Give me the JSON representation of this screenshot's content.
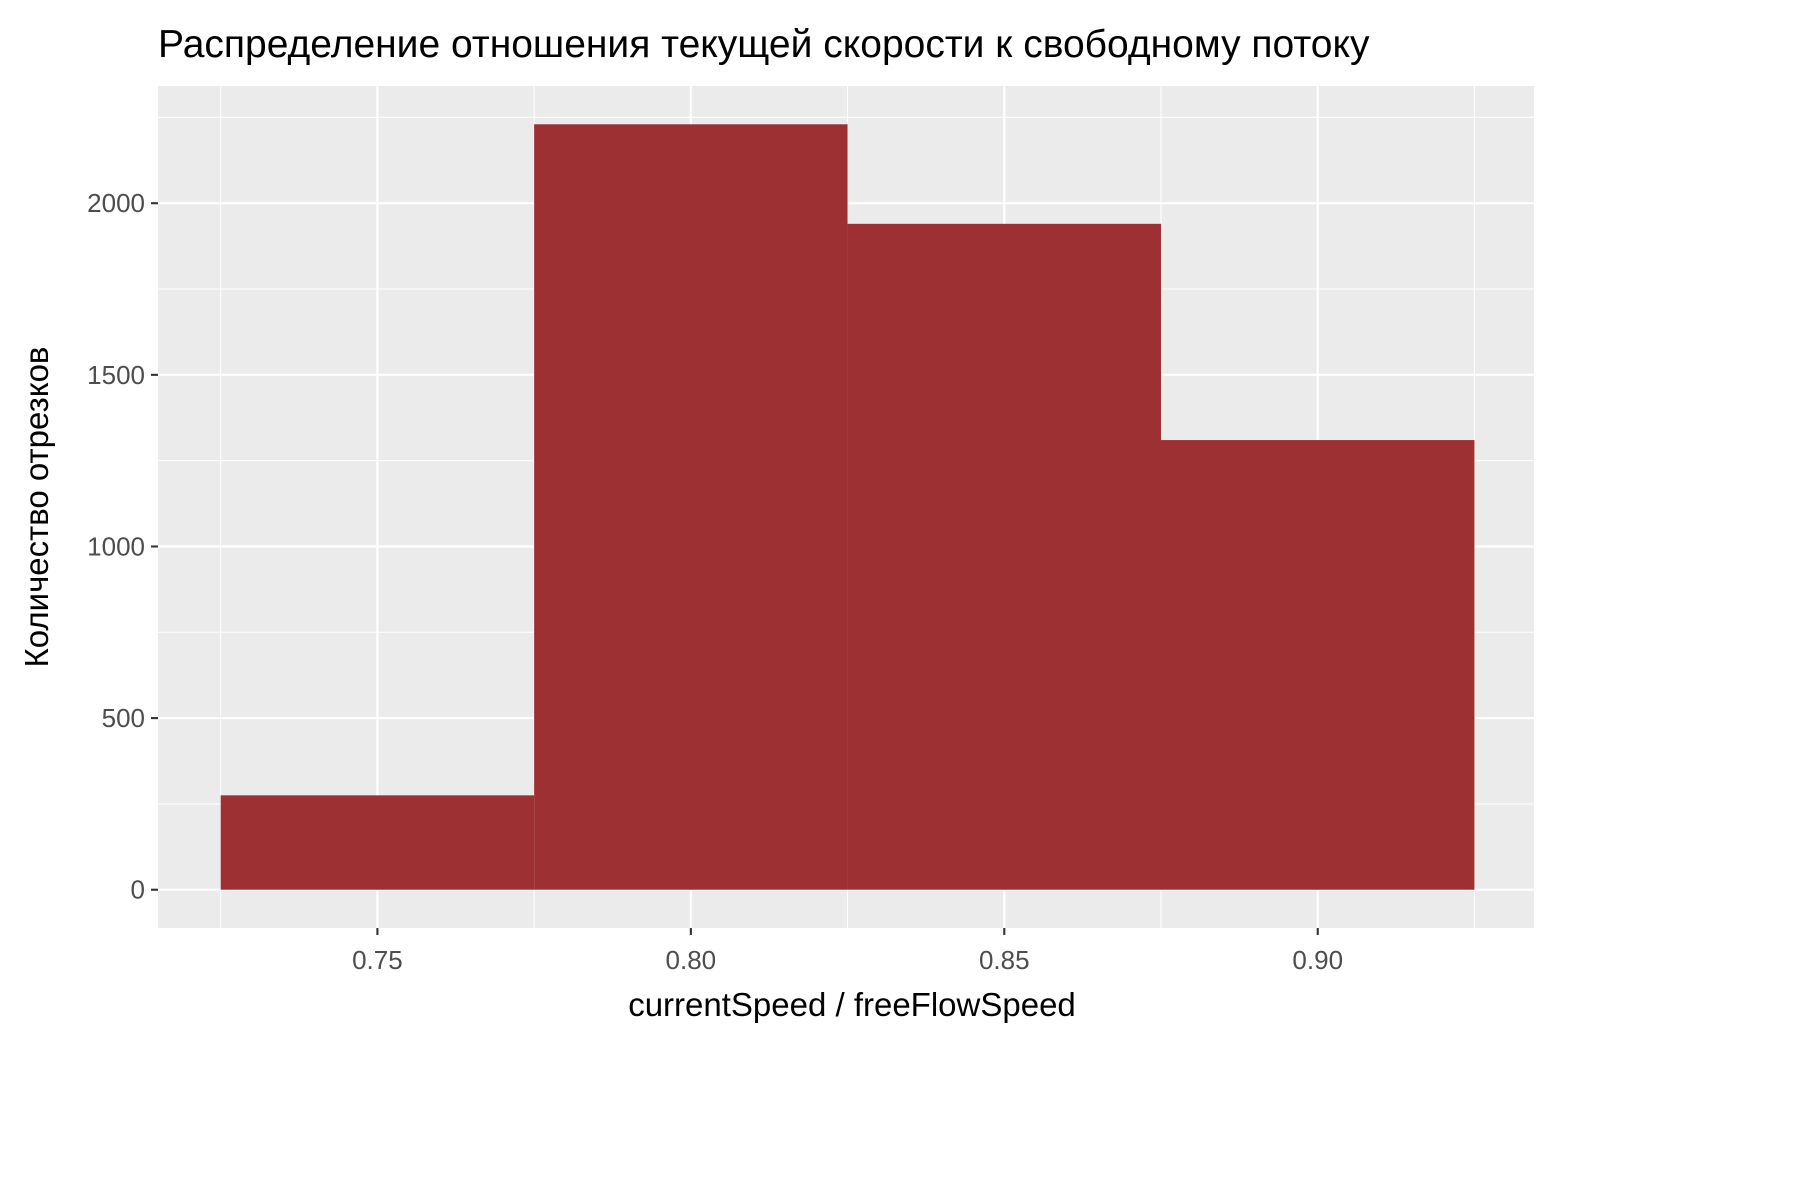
{
  "chart_data": {
    "type": "histogram",
    "title": "Распределение отношения текущей скорости к свободному потоку",
    "xlabel": "currentSpeed / freeFlowSpeed",
    "ylabel": "Количество отрезков",
    "bins": [
      {
        "x_start": 0.725,
        "x_end": 0.775,
        "count": 275
      },
      {
        "x_start": 0.775,
        "x_end": 0.825,
        "count": 2230
      },
      {
        "x_start": 0.825,
        "x_end": 0.875,
        "count": 1940
      },
      {
        "x_start": 0.875,
        "x_end": 0.925,
        "count": 1310
      }
    ],
    "x_ticks": [
      {
        "value": 0.75,
        "label": "0.75"
      },
      {
        "value": 0.8,
        "label": "0.80"
      },
      {
        "value": 0.85,
        "label": "0.85"
      },
      {
        "value": 0.9,
        "label": "0.90"
      }
    ],
    "y_ticks": [
      {
        "value": 0,
        "label": "0"
      },
      {
        "value": 500,
        "label": "500"
      },
      {
        "value": 1000,
        "label": "1000"
      },
      {
        "value": 1500,
        "label": "1500"
      },
      {
        "value": 2000,
        "label": "2000"
      }
    ],
    "xlim": [
      0.715,
      0.9345
    ],
    "ylim": [
      -111.5,
      2341.5
    ],
    "bar_color": "#9b2c2f",
    "panel_color": "#ebebeb",
    "grid": true,
    "legend": "none"
  }
}
